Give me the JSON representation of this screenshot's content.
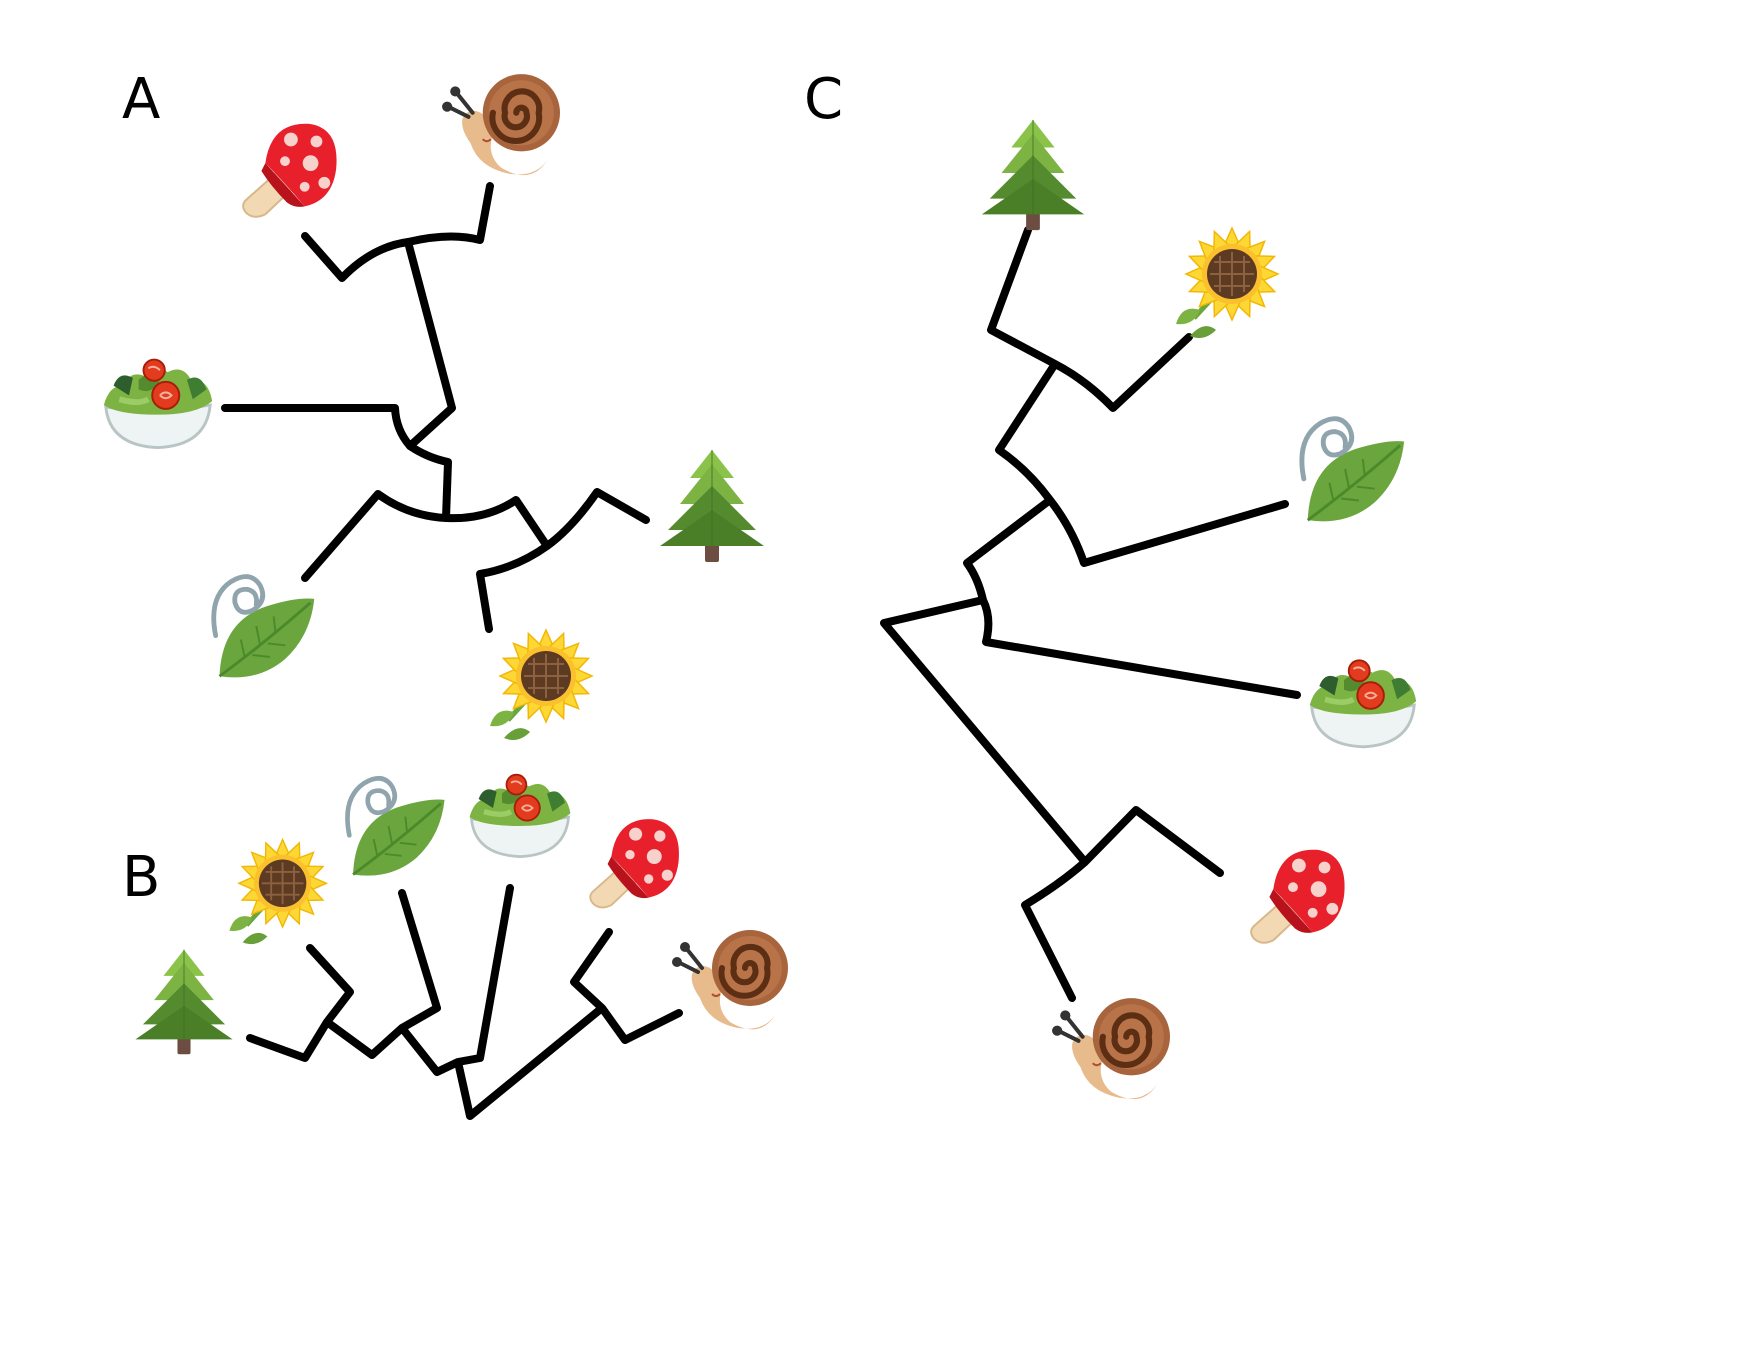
{
  "panels": [
    {
      "label": "A",
      "layout": "radial-circular"
    },
    {
      "label": "B",
      "layout": "fan-upward"
    },
    {
      "label": "C",
      "layout": "rectangular-slanted"
    }
  ],
  "taxa": [
    "mushroom",
    "snail",
    "salad",
    "spinach-leaf",
    "sunflower",
    "evergreen-tree"
  ],
  "colors": {
    "lines": "#000000",
    "background": "#ffffff"
  }
}
